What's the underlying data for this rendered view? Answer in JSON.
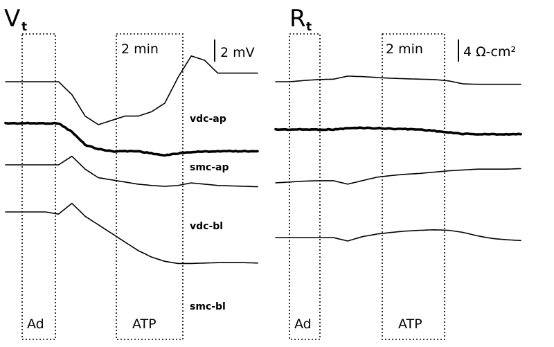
{
  "chart_data": [
    {
      "type": "line",
      "panel_title": "V",
      "panel_subscript": "t",
      "time_scale_label": "2 min",
      "amplitude_scale_label": "2 mV",
      "windows": [
        {
          "label": "Ad"
        },
        {
          "label": "ATP"
        }
      ],
      "series": [
        {
          "name": "vdc-ap",
          "thick": false,
          "values": [
            0,
            0,
            0,
            0,
            0,
            -3,
            -8,
            -10,
            -9,
            -8,
            -8,
            -7,
            -5,
            1,
            6,
            5,
            2,
            2,
            2,
            2
          ]
        },
        {
          "name": "smc-ap",
          "thick": true,
          "values": [
            0,
            0,
            0,
            0,
            0,
            -2,
            -5,
            -6,
            -6.5,
            -6.5,
            -6.5,
            -7,
            -7.5,
            -7,
            -6.7,
            -6.6,
            -6.5,
            -6.5,
            -6.5,
            -6.5
          ]
        },
        {
          "name": "vdc-bl",
          "thick": false,
          "values": [
            0,
            0,
            0,
            0,
            0,
            2,
            -1,
            -3,
            -3.5,
            -4,
            -4.5,
            -4.8,
            -5,
            -4.8,
            -4.2,
            -4.5,
            -4.8,
            -4.9,
            -5,
            -5.1
          ]
        },
        {
          "name": "smc-bl",
          "thick": false,
          "values": [
            0,
            0,
            0,
            0,
            -0.5,
            2,
            -1,
            -3,
            -5,
            -7,
            -9,
            -10.5,
            -11.5,
            -12,
            -12,
            -11.9,
            -11.8,
            -11.8,
            -11.8,
            -11.9
          ]
        }
      ]
    },
    {
      "type": "line",
      "panel_title": "R",
      "panel_subscript": "t",
      "time_scale_label": "2 min",
      "amplitude_scale_label": "4 Ω-cm²",
      "windows": [
        {
          "label": "Ad"
        },
        {
          "label": "ATP"
        }
      ],
      "series": [
        {
          "name": "",
          "thick": false,
          "values": [
            0,
            0,
            0.3,
            0.5,
            0.6,
            1.3,
            1.2,
            1,
            0.8,
            0.7,
            0.6,
            0.5,
            0.2,
            -0.5,
            -0.6,
            -0.6,
            -0.6,
            -0.6
          ]
        },
        {
          "name": "",
          "thick": true,
          "values": [
            0,
            0,
            0,
            0,
            0,
            0.3,
            0.4,
            0.3,
            0.2,
            0.1,
            0,
            -0.3,
            -0.7,
            -1,
            -1.1,
            -1.1,
            -1.1,
            -1.1
          ]
        },
        {
          "name": "",
          "thick": false,
          "values": [
            0,
            0.2,
            0.4,
            0.5,
            0.5,
            -0.3,
            0.5,
            1.3,
            1.7,
            2,
            2.2,
            2.5,
            2.8,
            3,
            3.2,
            3.2,
            3.2,
            3.3
          ]
        },
        {
          "name": "",
          "thick": false,
          "values": [
            0,
            0,
            0,
            0,
            0,
            -0.8,
            0.2,
            0.8,
            1.2,
            1.5,
            1.7,
            1.8,
            1.7,
            1.2,
            0.4,
            -0.2,
            -0.5,
            -0.7
          ]
        }
      ]
    }
  ]
}
